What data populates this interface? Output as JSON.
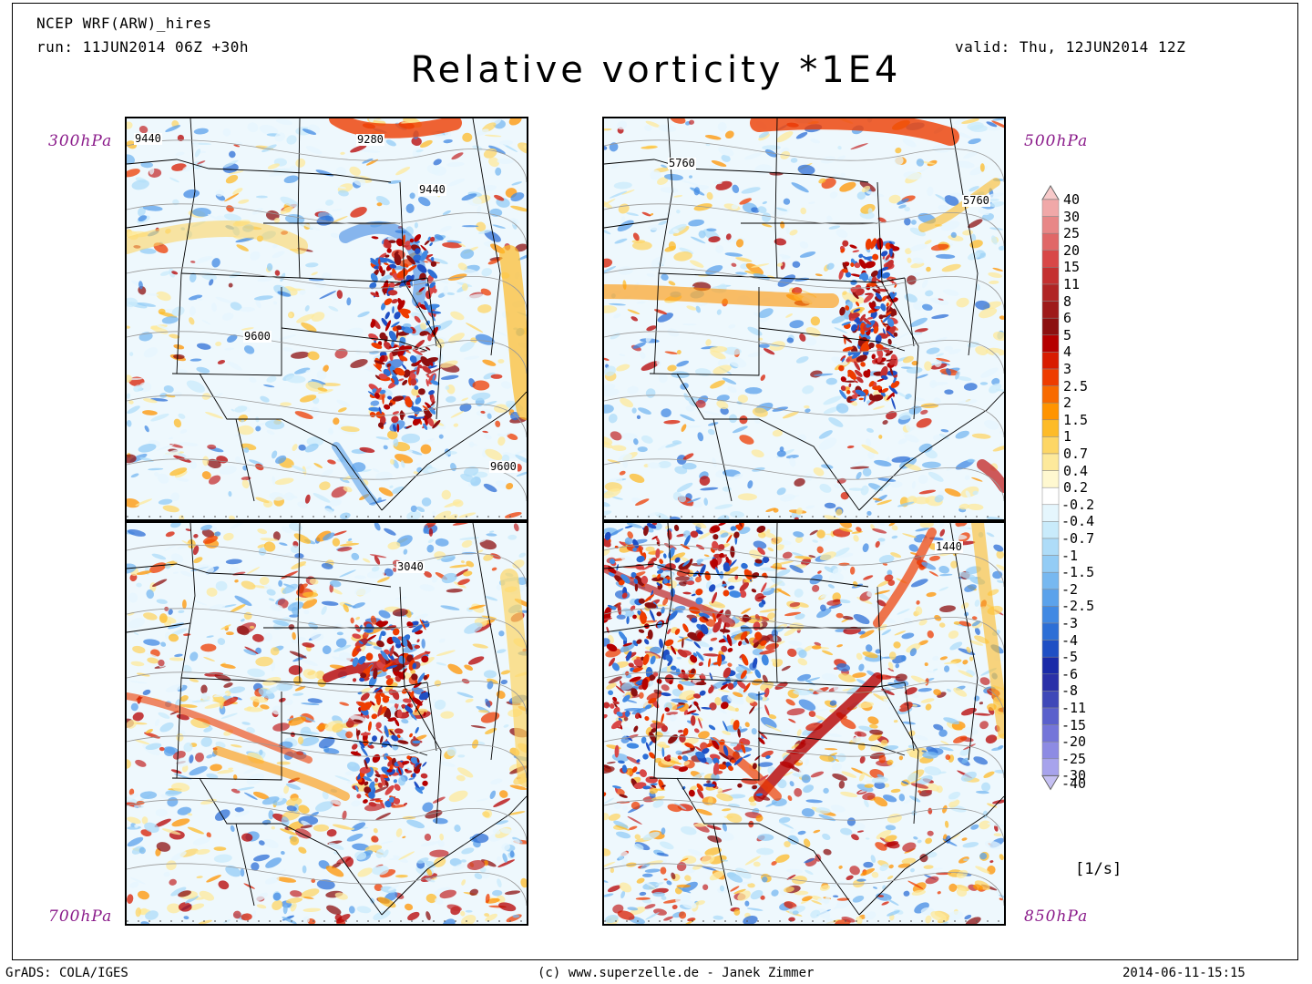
{
  "header": {
    "model": "NCEP WRF(ARW)_hires",
    "run": "run: 11JUN2014 06Z +30h",
    "valid": "valid: Thu, 12JUN2014 12Z",
    "title": "Relative vorticity *1E4"
  },
  "panels": [
    {
      "level": "300hPa",
      "contours": [
        "9440",
        "9280",
        "9440",
        "9600",
        "9600"
      ],
      "theme": "p300"
    },
    {
      "level": "500hPa",
      "contours": [
        "5760",
        "5760"
      ],
      "theme": "p500"
    },
    {
      "level": "700hPa",
      "contours": [
        "3040"
      ],
      "theme": "p700"
    },
    {
      "level": "850hPa",
      "contours": [
        "1440"
      ],
      "theme": "p850"
    }
  ],
  "colorbar": {
    "levels": [
      "40",
      "30",
      "25",
      "20",
      "15",
      "11",
      "8",
      "6",
      "5",
      "4",
      "3",
      "2.5",
      "2",
      "1.5",
      "1",
      "0.7",
      "0.4",
      "0.2",
      "-0.2",
      "-0.4",
      "-0.7",
      "-1",
      "-1.5",
      "-2",
      "-2.5",
      "-3",
      "-4",
      "-5",
      "-6",
      "-8",
      "-11",
      "-15",
      "-20",
      "-25",
      "-30",
      "-40"
    ],
    "colors": [
      "#f7c9c9",
      "#f0a8a8",
      "#e88787",
      "#e06767",
      "#d84747",
      "#c43030",
      "#b02424",
      "#9e1a1a",
      "#8c1010",
      "#b50000",
      "#d81c00",
      "#ee3c00",
      "#f86a00",
      "#ff9400",
      "#fdbb28",
      "#fdd665",
      "#fde99b",
      "#fff8d0",
      "#ffffff",
      "#e5f6fd",
      "#c9ebfb",
      "#aedcf8",
      "#93ccf5",
      "#77b8f0",
      "#5ba2eb",
      "#4189e3",
      "#2d6fd6",
      "#1f4fc4",
      "#1a2aa8",
      "#2a30a8",
      "#3f48b8",
      "#5a60cc",
      "#7475d9",
      "#8d8be3",
      "#a7a3ec",
      "#c5c0f3"
    ],
    "units": "[1/s]"
  },
  "footer": {
    "left": "GrADS: COLA/IGES",
    "center": "(c) www.superzelle.de - Janek Zimmer",
    "right": "2014-06-11-15:15"
  }
}
